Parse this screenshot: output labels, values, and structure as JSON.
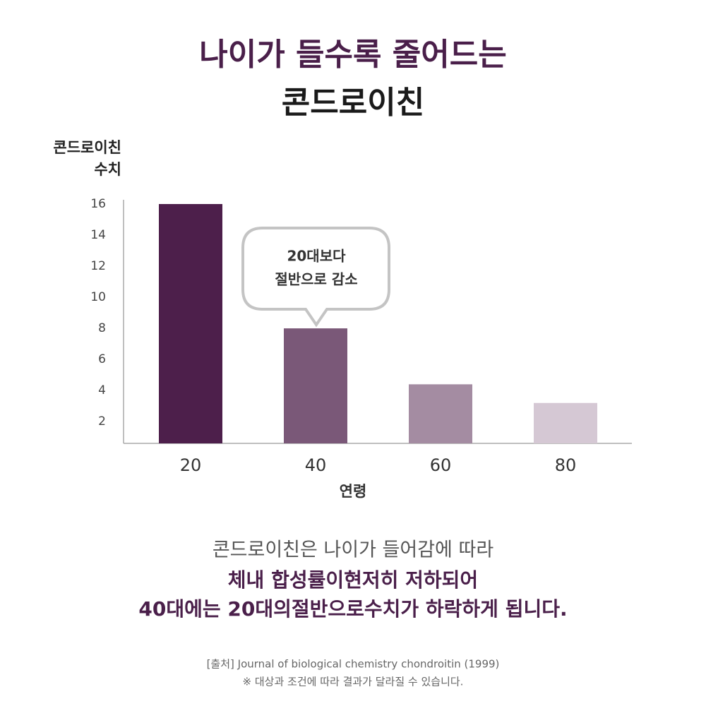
{
  "chart_data": {
    "type": "bar",
    "title": [
      "나이가 들수록 줄어드는",
      "콘드로이친"
    ],
    "y_label": [
      "콘드로이친",
      "수치"
    ],
    "x_label": "연령",
    "annotation": [
      "20대보다",
      "절반으로 감소"
    ],
    "categories": [
      "20",
      "40",
      "60",
      "80"
    ],
    "values": [
      16,
      8,
      4.4,
      3.2
    ],
    "colors": [
      "#4d1f4b",
      "#7a5878",
      "#a48ca2",
      "#d5c8d4"
    ],
    "ylim": [
      0.6,
      16
    ],
    "yticks": [
      2,
      4,
      6,
      8,
      10,
      12,
      14,
      16
    ],
    "grid": false
  },
  "description": [
    "콘드로이친은 나이가 들어감에 따라",
    "체내 합성률이현저히 저하되어",
    "40대에는 20대의절반으로수치가 하락하게 됩니다."
  ],
  "footer": [
    "[출처] Journal of biological chemistry chondroitin (1999)",
    "※ 대상과 조건에 따라 결과가 달라질 수 있습니다."
  ]
}
